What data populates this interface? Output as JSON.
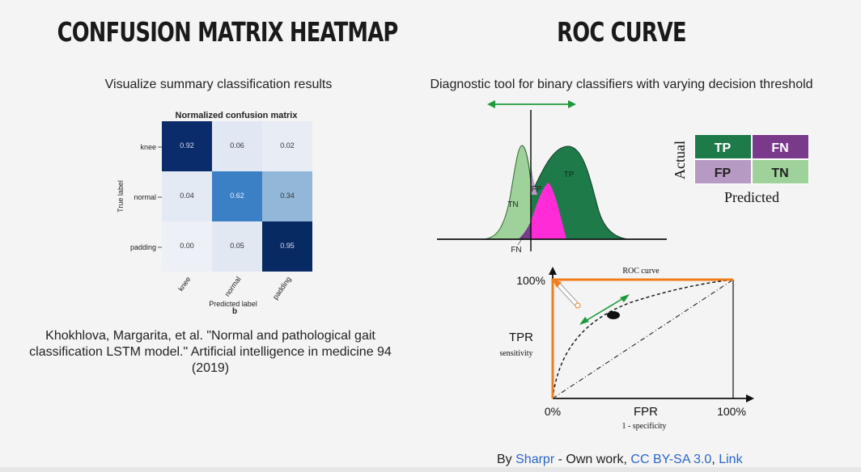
{
  "left": {
    "title": "CONFUSION MATRIX HEATMAP",
    "subtitle": "Visualize summary classification results",
    "citation_line1": "Khokhlova, Margarita, et al. \"Normal and pathological gait",
    "citation_line2": "classification LSTM model.\" Artificial intelligence in medicine 94",
    "citation_line3": "(2019)",
    "heatmap": {
      "title": "Normalized confusion matrix",
      "ylabel": "True label",
      "xlabel": "Predicted label",
      "panel": "b",
      "rows": [
        "knee",
        "normal",
        "padding"
      ],
      "cols": [
        "knee",
        "normal",
        "padding"
      ],
      "cells": [
        [
          "0.92",
          "0.06",
          "0.02"
        ],
        [
          "0.04",
          "0.62",
          "0.34"
        ],
        [
          "0.00",
          "0.05",
          "0.95"
        ]
      ]
    }
  },
  "right": {
    "title": "ROC CURVE",
    "subtitle": "Diagnostic tool for binary classifiers with varying decision threshold",
    "dist": {
      "tn": "TN",
      "tp": "TP",
      "fp": "FP",
      "fn": "FN"
    },
    "matrix": {
      "tp": "TP",
      "fn": "FN",
      "fp": "FP",
      "tn": "TN",
      "actual": "Actual",
      "predicted": "Predicted"
    },
    "roc": {
      "title": "ROC curve",
      "y_top": "100%",
      "ylabel": "TPR",
      "ylabel_sub": "sensitivity",
      "x_left": "0%",
      "xlabel": "FPR",
      "xlabel_sub": "1 - specificity",
      "x_right": "100%"
    },
    "attribution": {
      "by": "By",
      "author": "Sharpr",
      "mid": "- Own work,",
      "license": "CC BY-SA 3.0",
      "comma": ",",
      "link": "Link"
    }
  },
  "colors": {
    "tp_green": "#1f7a4a",
    "fn_purple": "#7a3a8c",
    "fp_lavender": "#b69ac4",
    "tn_lightgreen": "#9fd29a",
    "pink": "#ff2bd6",
    "orange": "#f07c1a",
    "arrow_green": "#1e9a3a"
  }
}
